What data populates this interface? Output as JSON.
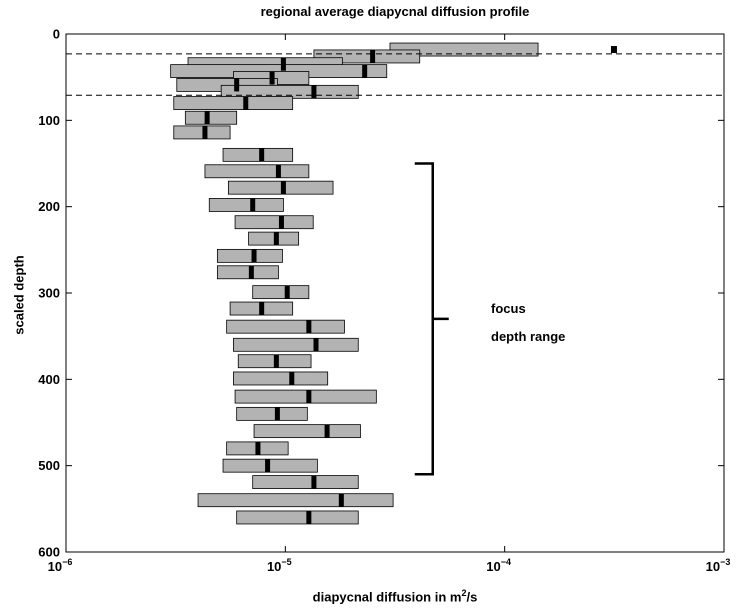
{
  "chart_data": {
    "type": "bar",
    "title": "regional average diapycnal diffusion profile",
    "xlabel_text": "diapycnal diffusion in m",
    "xlabel_sup": "2",
    "xlabel_tail": "/s",
    "ylabel": "scaled depth",
    "xscale": "log",
    "xlim": [
      1e-06,
      0.001
    ],
    "ylim": [
      0,
      600
    ],
    "y_reversed": true,
    "xticks": [
      {
        "base": "10",
        "exp": "−6",
        "value": 1e-06
      },
      {
        "base": "10",
        "exp": "−5",
        "value": 1e-05
      },
      {
        "base": "10",
        "exp": "−4",
        "value": 0.0001
      },
      {
        "base": "10",
        "exp": "−3",
        "value": 0.001
      }
    ],
    "yticks": [
      "0",
      "100",
      "200",
      "300",
      "400",
      "500",
      "600"
    ],
    "reference_lines": [
      23,
      71
    ],
    "outlier_marker": {
      "depth": 18,
      "value": 0.000315
    },
    "range_bars": [
      {
        "depth": 18,
        "low": 3e-05,
        "high": 0.000142,
        "median": null
      },
      {
        "depth": 26,
        "low": 1.35e-05,
        "high": 4.1e-05,
        "median": 2.5e-05
      },
      {
        "depth": 35,
        "low": 3.6e-06,
        "high": 1.82e-05,
        "median": 9.8e-06
      },
      {
        "depth": 43,
        "low": 3e-06,
        "high": 2.9e-05,
        "median": 2.3e-05
      },
      {
        "depth": 51,
        "low": 5.8e-06,
        "high": 1.28e-05,
        "median": 8.7e-06
      },
      {
        "depth": 59,
        "low": 3.2e-06,
        "high": 9.2e-06,
        "median": 6e-06
      },
      {
        "depth": 67,
        "low": 5.1e-06,
        "high": 2.15e-05,
        "median": 1.35e-05
      },
      {
        "depth": 80,
        "low": 3.1e-06,
        "high": 1.08e-05,
        "median": 6.6e-06
      },
      {
        "depth": 97,
        "low": 3.5e-06,
        "high": 6e-06,
        "median": 4.4e-06
      },
      {
        "depth": 114,
        "low": 3.1e-06,
        "high": 5.6e-06,
        "median": 4.3e-06
      },
      {
        "depth": 140,
        "low": 5.2e-06,
        "high": 1.08e-05,
        "median": 7.8e-06
      },
      {
        "depth": 159,
        "low": 4.3e-06,
        "high": 1.28e-05,
        "median": 9.3e-06
      },
      {
        "depth": 178,
        "low": 5.5e-06,
        "high": 1.65e-05,
        "median": 9.8e-06
      },
      {
        "depth": 198,
        "low": 4.5e-06,
        "high": 9.8e-06,
        "median": 7.1e-06
      },
      {
        "depth": 218,
        "low": 5.9e-06,
        "high": 1.34e-05,
        "median": 9.6e-06
      },
      {
        "depth": 237,
        "low": 6.8e-06,
        "high": 1.15e-05,
        "median": 9.1e-06
      },
      {
        "depth": 257,
        "low": 4.9e-06,
        "high": 9.7e-06,
        "median": 7.2e-06
      },
      {
        "depth": 276,
        "low": 4.9e-06,
        "high": 9.3e-06,
        "median": 7e-06
      },
      {
        "depth": 299,
        "low": 7.1e-06,
        "high": 1.28e-05,
        "median": 1.02e-05
      },
      {
        "depth": 318,
        "low": 5.6e-06,
        "high": 1.08e-05,
        "median": 7.8e-06
      },
      {
        "depth": 339,
        "low": 5.4e-06,
        "high": 1.86e-05,
        "median": 1.28e-05
      },
      {
        "depth": 360,
        "low": 5.8e-06,
        "high": 2.15e-05,
        "median": 1.38e-05
      },
      {
        "depth": 379,
        "low": 6.1e-06,
        "high": 1.31e-05,
        "median": 9.1e-06
      },
      {
        "depth": 399,
        "low": 5.8e-06,
        "high": 1.56e-05,
        "median": 1.07e-05
      },
      {
        "depth": 420,
        "low": 5.9e-06,
        "high": 2.6e-05,
        "median": 1.28e-05
      },
      {
        "depth": 440,
        "low": 6e-06,
        "high": 1.26e-05,
        "median": 9.2e-06
      },
      {
        "depth": 460,
        "low": 7.2e-06,
        "high": 2.2e-05,
        "median": 1.55e-05
      },
      {
        "depth": 480,
        "low": 5.4e-06,
        "high": 1.03e-05,
        "median": 7.5e-06
      },
      {
        "depth": 500,
        "low": 5.2e-06,
        "high": 1.4e-05,
        "median": 8.3e-06
      },
      {
        "depth": 519,
        "low": 7.1e-06,
        "high": 2.15e-05,
        "median": 1.35e-05
      },
      {
        "depth": 540,
        "low": 4e-06,
        "high": 3.1e-05,
        "median": 1.8e-05
      },
      {
        "depth": 560,
        "low": 6e-06,
        "high": 2.15e-05,
        "median": 1.28e-05
      }
    ],
    "focus_bracket": {
      "top": 150,
      "bottom": 510,
      "value": 4.7e-05
    },
    "annotations": [
      "focus",
      "depth range"
    ],
    "bar_fill": "#b3b3b3",
    "median_color": "#000000",
    "grid": false,
    "legend": "none"
  }
}
